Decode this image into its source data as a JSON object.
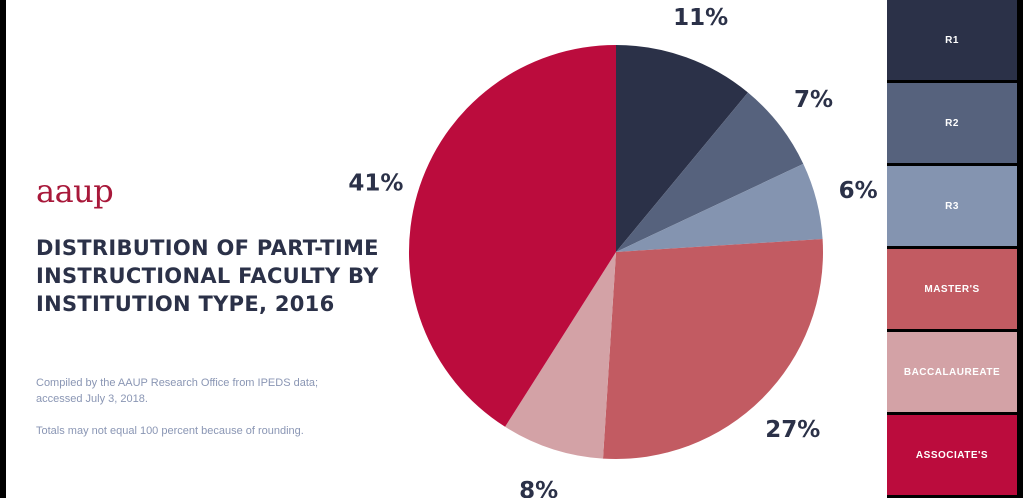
{
  "logo": "aaup",
  "chart_data": {
    "type": "pie",
    "title": "DISTRIBUTION OF PART-TIME INSTRUCTIONAL FACULTY BY INSTITUTION TYPE, 2016",
    "categories": [
      "R1",
      "R2",
      "R3",
      "MASTER'S",
      "BACCALAUREATE",
      "ASSOCIATE'S"
    ],
    "values": [
      11,
      7,
      6,
      27,
      8,
      41
    ],
    "labels": [
      "11%",
      "7%",
      "6%",
      "27%",
      "8%",
      "41%"
    ],
    "colors": [
      "#2b3148",
      "#56627d",
      "#8494b0",
      "#c25b62",
      "#d3a2a6",
      "#bb0c3d"
    ],
    "legend_position": "right",
    "source_note": "Compiled by the AAUP Research Office from IPEDS data; accessed July 3, 2018.",
    "rounding_note": "Totals may not equal 100 percent because of rounding."
  }
}
